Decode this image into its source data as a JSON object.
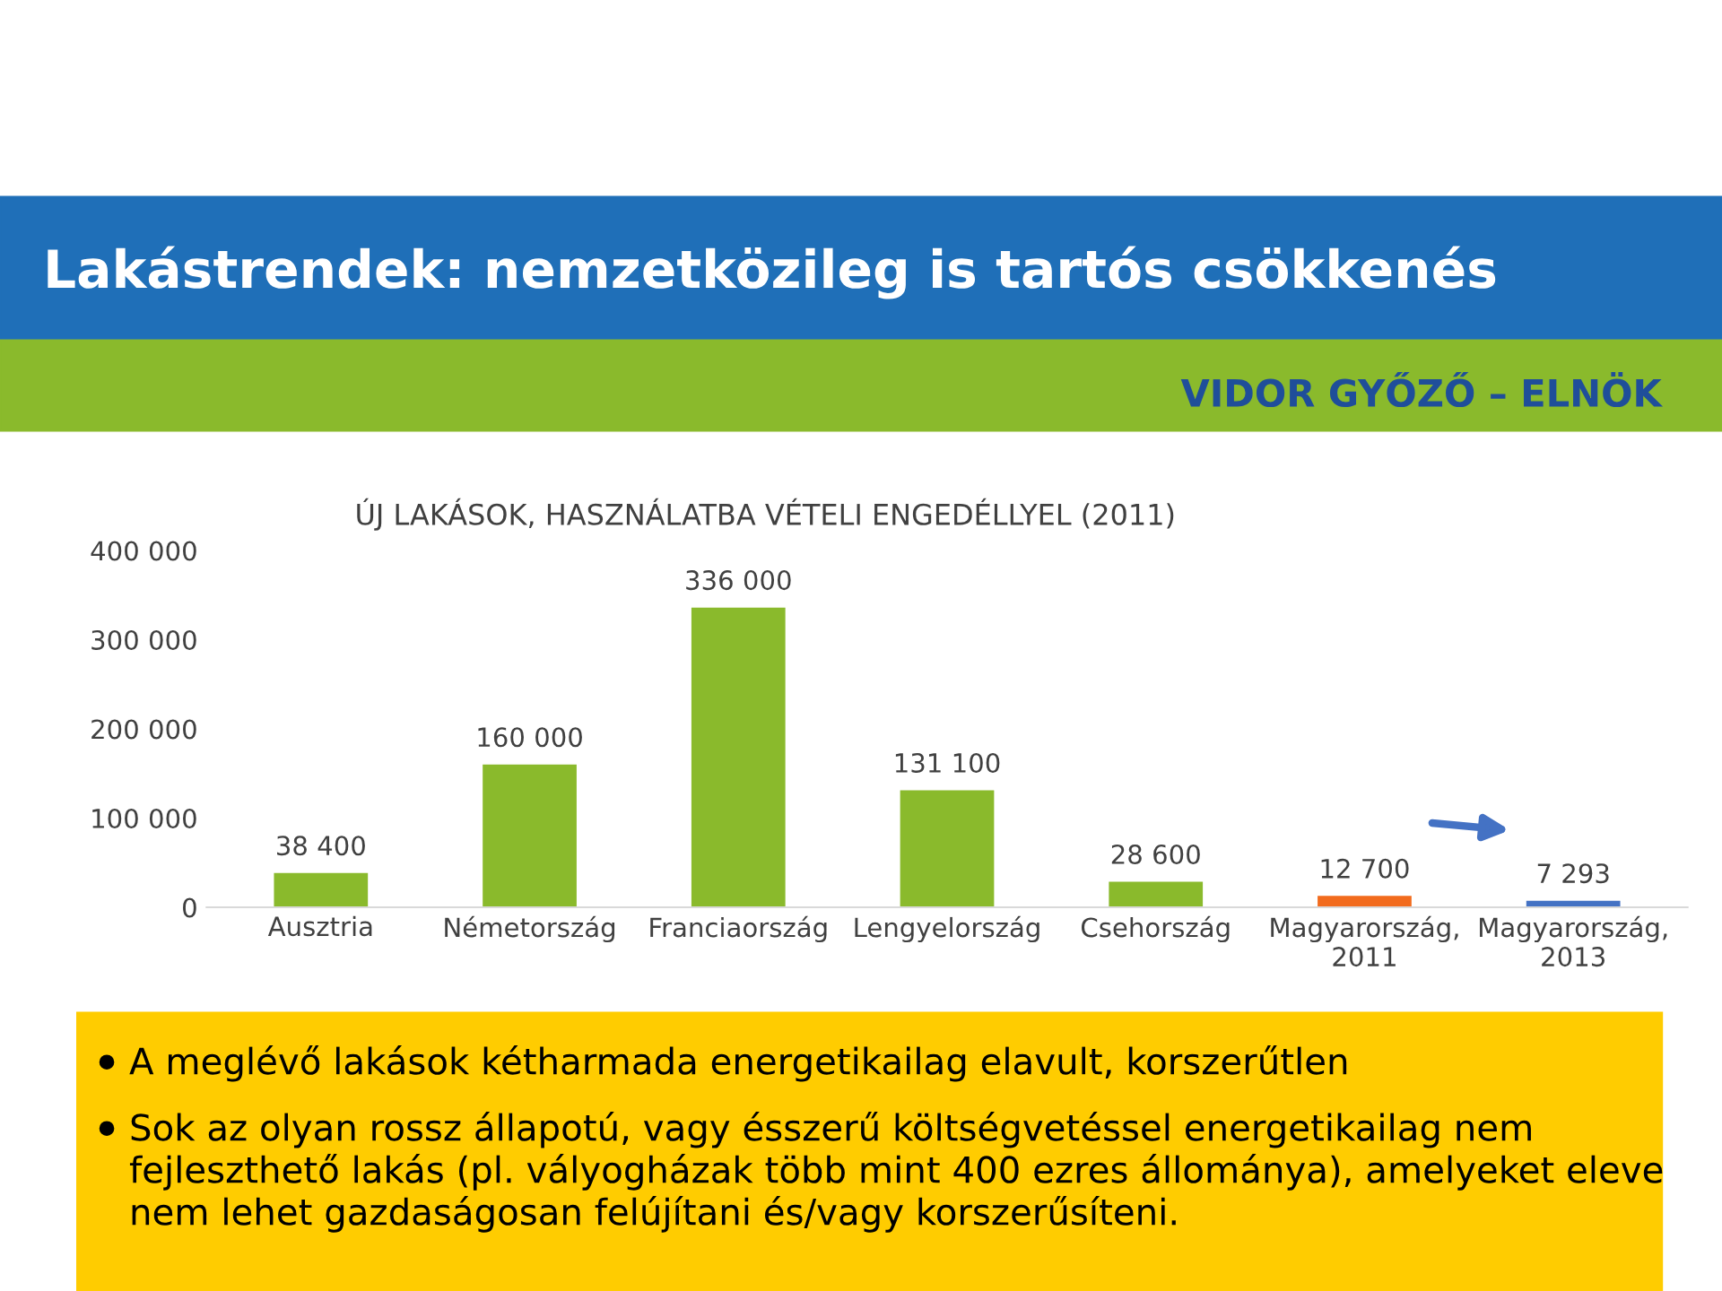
{
  "chart_data": {
    "type": "bar",
    "title": "Lakástrendek: nemzetközileg is tartós csökkenés",
    "subtitle": "ÚJ LAKÁSOK, HASZNÁLATBA VÉTELI ENGEDÉLLYEL (2011)",
    "categories": [
      "Ausztria",
      "Németország",
      "Franciaország",
      "Lengyelország",
      "Csehország",
      "Magyarország,\n2011",
      "Magyarország,\n2013"
    ],
    "values": [
      38400,
      160000,
      336000,
      131100,
      28600,
      12700,
      7293
    ],
    "colors": [
      "#8aba2c",
      "#8aba2c",
      "#8aba2c",
      "#8aba2c",
      "#8aba2c",
      "#f26b1d",
      "#4472c4"
    ],
    "value_labels": [
      "38 400",
      "160 000",
      "336 000",
      "131 100",
      "28 600",
      "12 700",
      "7 293"
    ],
    "ylim": [
      0,
      400000
    ],
    "yticks": [
      {
        "value": 0,
        "label": "0"
      },
      {
        "value": 100000,
        "label": "100 000"
      },
      {
        "value": 200000,
        "label": "200 000"
      },
      {
        "value": 300000,
        "label": "300 000"
      },
      {
        "value": 400000,
        "label": "400 000"
      }
    ],
    "grid": false,
    "annotations": [
      "VIDOR GYŐZŐ – ELNÖK",
      "A meglévő lakások kétharmada energetikailag elavult, korszerűtlen",
      "Sok az olyan rossz állapotú, vagy ésszerű költségvetéssel energetikailag nem fejleszthető lakás (pl. vályogházak több mint 400 ezres állománya), amelyeket eleve nem lehet gazdaságosan felújítani és/vagy korszerűsíteni."
    ]
  }
}
